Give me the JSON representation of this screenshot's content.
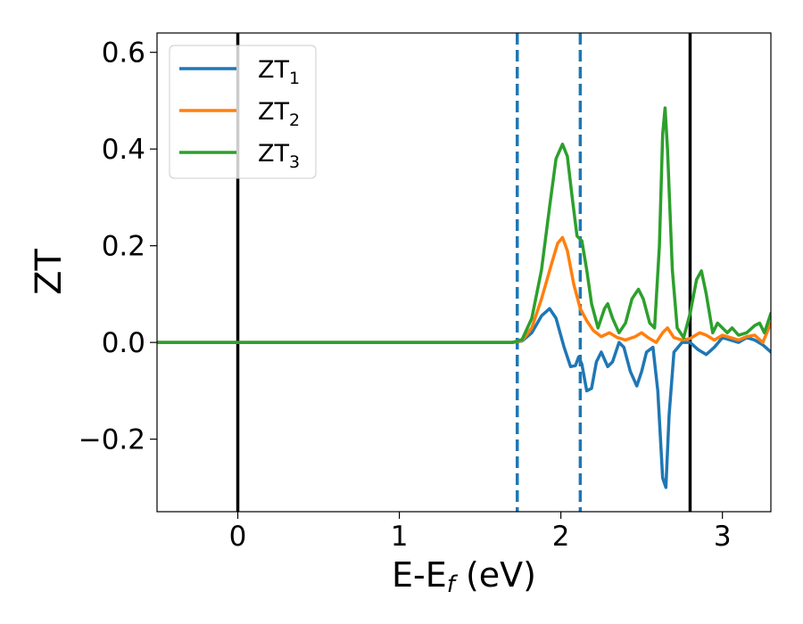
{
  "chart_data": {
    "type": "line",
    "title": "",
    "xlabel": "E-E",
    "xlabel_sub": "f",
    "xlabel_unit": " (eV)",
    "ylabel": "ZT",
    "xlim": [
      -0.5,
      3.3
    ],
    "ylim": [
      -0.35,
      0.64
    ],
    "xticks": [
      0,
      1,
      2,
      3
    ],
    "yticks": [
      -0.2,
      0.0,
      0.2,
      0.4,
      0.6
    ],
    "xtick_labels": [
      "0",
      "1",
      "2",
      "3"
    ],
    "ytick_labels": [
      "−0.2",
      "0.0",
      "0.2",
      "0.4",
      "0.6"
    ],
    "grid": false,
    "legend_position": "top-left",
    "vlines": [
      {
        "x": 0.0,
        "style": "solid",
        "color": "#000000"
      },
      {
        "x": 2.8,
        "style": "solid",
        "color": "#000000"
      },
      {
        "x": 1.73,
        "style": "dashed",
        "color": "#1f77b4"
      },
      {
        "x": 2.12,
        "style": "dashed",
        "color": "#1f77b4"
      }
    ],
    "series": [
      {
        "name": "ZT",
        "name_sub": "1",
        "color": "#1f77b4",
        "points": [
          [
            -0.5,
            0
          ],
          [
            1.6,
            0
          ],
          [
            1.7,
            0
          ],
          [
            1.76,
            0.003
          ],
          [
            1.82,
            0.02
          ],
          [
            1.88,
            0.055
          ],
          [
            1.93,
            0.07
          ],
          [
            1.97,
            0.05
          ],
          [
            2.02,
            -0.01
          ],
          [
            2.06,
            -0.05
          ],
          [
            2.09,
            -0.048
          ],
          [
            2.11,
            -0.03
          ],
          [
            2.13,
            -0.045
          ],
          [
            2.16,
            -0.1
          ],
          [
            2.19,
            -0.095
          ],
          [
            2.22,
            -0.04
          ],
          [
            2.25,
            -0.02
          ],
          [
            2.29,
            -0.05
          ],
          [
            2.32,
            -0.04
          ],
          [
            2.36,
            0.0
          ],
          [
            2.39,
            -0.01
          ],
          [
            2.43,
            -0.06
          ],
          [
            2.47,
            -0.09
          ],
          [
            2.5,
            -0.06
          ],
          [
            2.53,
            -0.02
          ],
          [
            2.57,
            -0.01
          ],
          [
            2.6,
            -0.1
          ],
          [
            2.63,
            -0.28
          ],
          [
            2.65,
            -0.3
          ],
          [
            2.67,
            -0.15
          ],
          [
            2.7,
            -0.02
          ],
          [
            2.75,
            0.0
          ],
          [
            2.8,
            0.0
          ],
          [
            2.85,
            -0.015
          ],
          [
            2.9,
            -0.025
          ],
          [
            2.95,
            -0.01
          ],
          [
            3.0,
            0.01
          ],
          [
            3.05,
            0.005
          ],
          [
            3.1,
            0.0
          ],
          [
            3.15,
            0.01
          ],
          [
            3.2,
            0.005
          ],
          [
            3.25,
            -0.005
          ],
          [
            3.3,
            -0.02
          ]
        ]
      },
      {
        "name": "ZT",
        "name_sub": "2",
        "color": "#ff7f0e",
        "points": [
          [
            -0.5,
            0
          ],
          [
            1.6,
            0
          ],
          [
            1.7,
            0
          ],
          [
            1.76,
            0.004
          ],
          [
            1.82,
            0.03
          ],
          [
            1.88,
            0.09
          ],
          [
            1.94,
            0.16
          ],
          [
            1.98,
            0.205
          ],
          [
            2.01,
            0.217
          ],
          [
            2.04,
            0.19
          ],
          [
            2.08,
            0.12
          ],
          [
            2.12,
            0.07
          ],
          [
            2.16,
            0.045
          ],
          [
            2.2,
            0.025
          ],
          [
            2.25,
            0.012
          ],
          [
            2.3,
            0.02
          ],
          [
            2.35,
            0.01
          ],
          [
            2.4,
            0.005
          ],
          [
            2.46,
            0.012
          ],
          [
            2.5,
            0.02
          ],
          [
            2.54,
            0.01
          ],
          [
            2.59,
            0.0
          ],
          [
            2.63,
            0.02
          ],
          [
            2.66,
            0.03
          ],
          [
            2.7,
            0.01
          ],
          [
            2.75,
            0.005
          ],
          [
            2.8,
            0.008
          ],
          [
            2.86,
            0.02
          ],
          [
            2.9,
            0.015
          ],
          [
            2.95,
            0.005
          ],
          [
            3.0,
            0.015
          ],
          [
            3.05,
            0.01
          ],
          [
            3.1,
            0.005
          ],
          [
            3.15,
            0.012
          ],
          [
            3.2,
            0.015
          ],
          [
            3.25,
            0.0
          ],
          [
            3.3,
            0.04
          ]
        ]
      },
      {
        "name": "ZT",
        "name_sub": "3",
        "color": "#2ca02c",
        "points": [
          [
            -0.5,
            0
          ],
          [
            1.6,
            0
          ],
          [
            1.7,
            0
          ],
          [
            1.76,
            0.006
          ],
          [
            1.82,
            0.05
          ],
          [
            1.88,
            0.15
          ],
          [
            1.93,
            0.28
          ],
          [
            1.97,
            0.38
          ],
          [
            2.01,
            0.41
          ],
          [
            2.04,
            0.385
          ],
          [
            2.07,
            0.3
          ],
          [
            2.1,
            0.22
          ],
          [
            2.13,
            0.21
          ],
          [
            2.16,
            0.15
          ],
          [
            2.19,
            0.08
          ],
          [
            2.23,
            0.03
          ],
          [
            2.27,
            0.07
          ],
          [
            2.29,
            0.08
          ],
          [
            2.32,
            0.05
          ],
          [
            2.36,
            0.02
          ],
          [
            2.4,
            0.04
          ],
          [
            2.44,
            0.09
          ],
          [
            2.48,
            0.11
          ],
          [
            2.51,
            0.09
          ],
          [
            2.55,
            0.04
          ],
          [
            2.58,
            0.03
          ],
          [
            2.61,
            0.2
          ],
          [
            2.63,
            0.43
          ],
          [
            2.645,
            0.485
          ],
          [
            2.66,
            0.4
          ],
          [
            2.69,
            0.15
          ],
          [
            2.72,
            0.03
          ],
          [
            2.76,
            0.01
          ],
          [
            2.8,
            0.06
          ],
          [
            2.84,
            0.13
          ],
          [
            2.87,
            0.148
          ],
          [
            2.9,
            0.1
          ],
          [
            2.94,
            0.02
          ],
          [
            2.97,
            0.04
          ],
          [
            3.0,
            0.03
          ],
          [
            3.03,
            0.02
          ],
          [
            3.06,
            0.03
          ],
          [
            3.1,
            0.015
          ],
          [
            3.15,
            0.02
          ],
          [
            3.2,
            0.035
          ],
          [
            3.23,
            0.04
          ],
          [
            3.26,
            0.02
          ],
          [
            3.3,
            0.06
          ]
        ]
      }
    ]
  }
}
